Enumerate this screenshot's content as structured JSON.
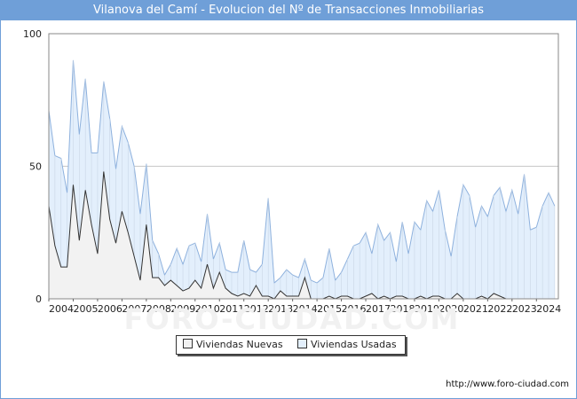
{
  "header": {
    "title": "Vilanova del Camí - Evolucion del Nº de Transacciones Inmobiliarias"
  },
  "footer": {
    "url": "http://www.foro-ciudad.com"
  },
  "watermark": {
    "text": "FORO-CIUDAD.COM"
  },
  "colors": {
    "nuevas_fill": "#f2f2f2",
    "nuevas_line": "#333333",
    "usadas_fill": "#e3effc",
    "usadas_line": "#8eb1dd",
    "grid": "#c8c8c8",
    "brand": "#6f9fd8"
  },
  "chart_data": {
    "type": "area",
    "title": "Vilanova del Camí - Evolucion del Nº de Transacciones Inmobiliarias",
    "xlabel": "",
    "ylabel": "",
    "ylim": [
      0,
      100
    ],
    "yticks": [
      0,
      50,
      100
    ],
    "xlim": [
      2004,
      2024.9
    ],
    "xticks": [
      "2004",
      "2005",
      "2006",
      "2007",
      "2008",
      "2009",
      "2010",
      "2011",
      "2012",
      "2013",
      "2014",
      "2015",
      "2016",
      "2017",
      "2018",
      "2019",
      "2020",
      "2021",
      "2022",
      "2023",
      "2024"
    ],
    "grid": true,
    "legend_position": "bottom",
    "x_start": 2004,
    "x_step": 0.25,
    "series": [
      {
        "name": "Viviendas Nuevas",
        "values": [
          35,
          20,
          12,
          12,
          43,
          22,
          41,
          28,
          17,
          48,
          30,
          21,
          33,
          25,
          16,
          7,
          28,
          8,
          8,
          5,
          7,
          5,
          3,
          4,
          7,
          4,
          13,
          4,
          10,
          4,
          2,
          1,
          2,
          1,
          5,
          1,
          1,
          0,
          3,
          1,
          1,
          1,
          8,
          0,
          0,
          0,
          1,
          0,
          1,
          1,
          0,
          0,
          1,
          2,
          0,
          1,
          0,
          1,
          1,
          0,
          0,
          1,
          0,
          1,
          1,
          0,
          0,
          2,
          0,
          0,
          0,
          1,
          0,
          2,
          1,
          0,
          0,
          0,
          0,
          0,
          0,
          0,
          0,
          0
        ]
      },
      {
        "name": "Viviendas Usadas",
        "values": [
          71,
          54,
          53,
          40,
          90,
          62,
          83,
          55,
          55,
          82,
          68,
          49,
          65,
          59,
          50,
          32,
          51,
          22,
          17,
          9,
          13,
          19,
          13,
          20,
          21,
          14,
          32,
          15,
          21,
          11,
          10,
          10,
          22,
          11,
          10,
          13,
          38,
          6,
          8,
          11,
          9,
          8,
          15,
          7,
          6,
          8,
          19,
          7,
          10,
          15,
          20,
          21,
          25,
          17,
          28,
          22,
          25,
          14,
          29,
          17,
          29,
          26,
          37,
          33,
          41,
          26,
          16,
          31,
          43,
          39,
          27,
          35,
          31,
          39,
          42,
          33,
          41,
          32,
          47,
          26,
          27,
          35,
          40,
          35
        ]
      }
    ]
  }
}
